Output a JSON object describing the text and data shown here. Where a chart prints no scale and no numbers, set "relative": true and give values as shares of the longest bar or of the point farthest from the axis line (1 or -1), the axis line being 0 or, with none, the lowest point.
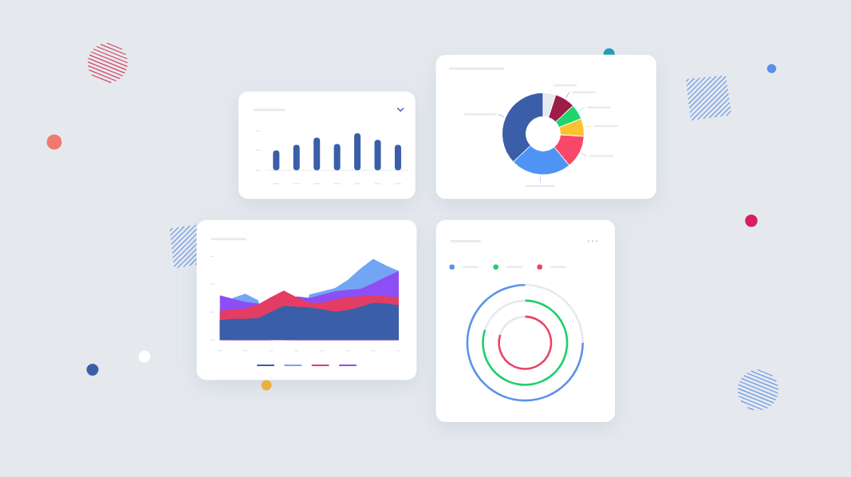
{
  "chart_data": [
    {
      "type": "bar",
      "relative": true,
      "categories": [
        null,
        null,
        null,
        null,
        null,
        null,
        null
      ],
      "values": [
        0.54,
        0.69,
        0.88,
        0.71,
        1,
        0.82,
        0.69
      ],
      "color": "#3b5ea8"
    },
    {
      "type": "donut",
      "categories": [
        null,
        null,
        null,
        null,
        null,
        null,
        null
      ],
      "values": [
        5,
        8,
        6,
        7,
        13,
        24,
        37
      ],
      "colors": [
        "#e6e9ef",
        "#9c1c48",
        "#1fd46b",
        "#fcc12f",
        "#f74869",
        "#4f94f4",
        "#3b5ea8"
      ]
    },
    {
      "type": "area",
      "relative": true,
      "categories": [
        null,
        null,
        null,
        null,
        null,
        null,
        null,
        null,
        null,
        null,
        null,
        null,
        null,
        null,
        null
      ],
      "series": [
        {
          "color": "#3b5ea8",
          "values": [
            0.25,
            0.26,
            0.26,
            0.27,
            0.35,
            0.42,
            0.41,
            0.4,
            0.38,
            0.35,
            0.37,
            0.41,
            0.46,
            0.45,
            0.43
          ]
        },
        {
          "color": "#72a6f5",
          "values": [
            null,
            0.52,
            0.57,
            0.49,
            null,
            null,
            null,
            0.56,
            0.6,
            0.64,
            0.74,
            0.88,
            1,
            0.92,
            0.85
          ]
        },
        {
          "color": "#e43d63",
          "values": [
            0.36,
            0.38,
            0.39,
            0.44,
            0.53,
            0.61,
            0.53,
            0.46,
            0.46,
            0.5,
            0.53,
            0.54,
            0.55,
            0.54,
            0.53
          ]
        },
        {
          "color": "#8d4ef5",
          "values": [
            0.55,
            0.51,
            0.47,
            0.45,
            null,
            null,
            0.54,
            0.52,
            0.56,
            0.6,
            0.62,
            0.63,
            0.7,
            0.78,
            0.85
          ]
        }
      ]
    },
    {
      "type": "donut",
      "color": "#5b93ea",
      "values": [
        25,
        75
      ],
      "colors": [
        "#e6e9ee",
        "#5b93ea"
      ]
    },
    {
      "type": "donut",
      "color": "#1fcf6a",
      "values": [
        80,
        20
      ],
      "colors": [
        "#1fcf6a",
        "#e6e9ee"
      ]
    },
    {
      "type": "donut",
      "color": "#e94467",
      "values": [
        80,
        20
      ],
      "colors": [
        "#e94467",
        "#e6e9ee"
      ]
    }
  ]
}
